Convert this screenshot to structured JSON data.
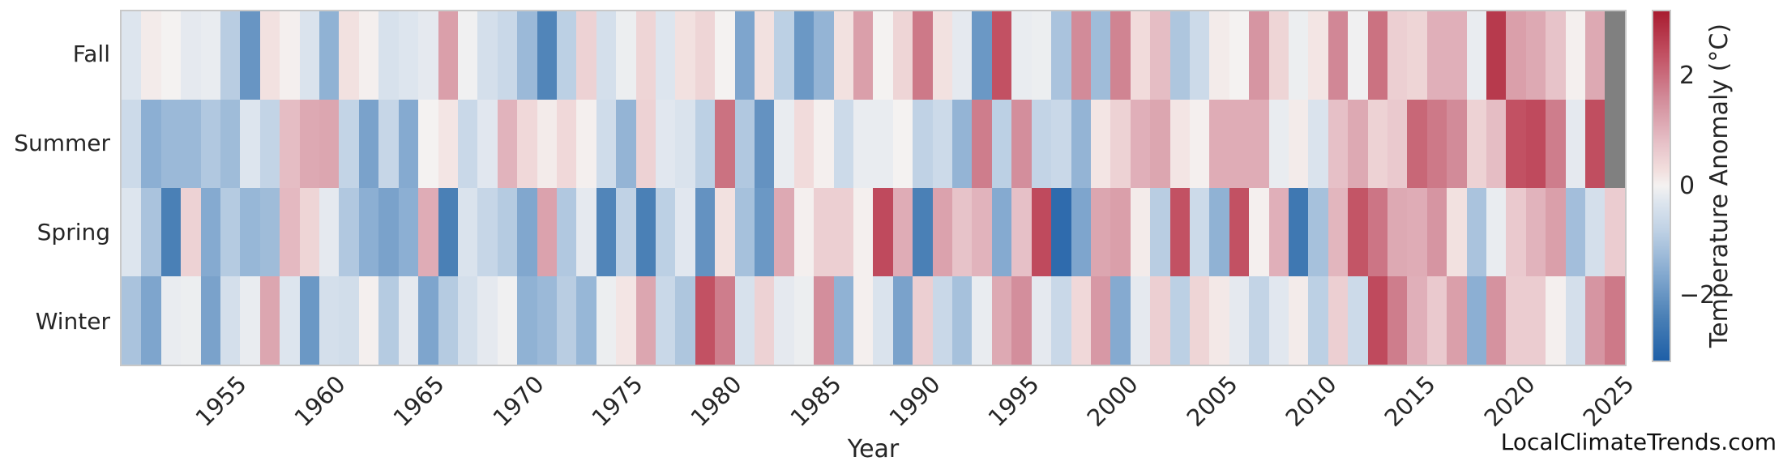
{
  "chart_data": {
    "type": "heatmap",
    "title": "",
    "xlabel": "Year",
    "ylabel": "",
    "rows": [
      "Fall",
      "Summer",
      "Spring",
      "Winter"
    ],
    "years": [
      1950,
      1951,
      1952,
      1953,
      1954,
      1955,
      1956,
      1957,
      1958,
      1959,
      1960,
      1961,
      1962,
      1963,
      1964,
      1965,
      1966,
      1967,
      1968,
      1969,
      1970,
      1971,
      1972,
      1973,
      1974,
      1975,
      1976,
      1977,
      1978,
      1979,
      1980,
      1981,
      1982,
      1983,
      1984,
      1985,
      1986,
      1987,
      1988,
      1989,
      1990,
      1991,
      1992,
      1993,
      1994,
      1995,
      1996,
      1997,
      1998,
      1999,
      2000,
      2001,
      2002,
      2003,
      2004,
      2005,
      2006,
      2007,
      2008,
      2009,
      2010,
      2011,
      2012,
      2013,
      2014,
      2015,
      2016,
      2017,
      2018,
      2019,
      2020,
      2021,
      2022,
      2023,
      2024,
      2025
    ],
    "x_tick_labels": [
      "1955",
      "1960",
      "1965",
      "1970",
      "1975",
      "1980",
      "1985",
      "1990",
      "1995",
      "2000",
      "2005",
      "2010",
      "2015",
      "2020",
      "2025"
    ],
    "series": [
      {
        "name": "Fall",
        "values": [
          -0.3,
          0.1,
          0.0,
          -0.2,
          -0.15,
          -0.9,
          -2.0,
          0.25,
          0.05,
          -0.35,
          -1.45,
          0.25,
          0.05,
          -0.4,
          -0.3,
          -0.2,
          1.3,
          -0.05,
          -0.45,
          -0.65,
          -1.3,
          -2.3,
          -0.85,
          0.5,
          -0.45,
          -0.1,
          0.45,
          -0.3,
          0.25,
          0.45,
          0.0,
          -1.7,
          0.25,
          -0.85,
          -1.95,
          -1.4,
          0.25,
          1.3,
          0.0,
          0.45,
          1.85,
          0.25,
          -0.2,
          -1.95,
          2.4,
          -0.15,
          -0.1,
          -1.1,
          1.6,
          -1.25,
          1.7,
          0.35,
          0.85,
          -1.05,
          -0.6,
          0.1,
          0.0,
          1.45,
          0.45,
          -0.1,
          0.2,
          1.65,
          -0.05,
          1.95,
          0.55,
          0.45,
          1.05,
          1.05,
          -0.15,
          2.75,
          1.3,
          1.15,
          0.75,
          0.05,
          1.15,
          null
        ]
      },
      {
        "name": "Summer",
        "values": [
          -0.6,
          -1.5,
          -1.3,
          -1.3,
          -1.0,
          -1.25,
          -0.3,
          -0.75,
          0.85,
          1.15,
          1.2,
          -0.75,
          -1.75,
          -0.7,
          -1.6,
          0.0,
          0.2,
          -0.65,
          -0.25,
          1.0,
          0.4,
          0.1,
          0.4,
          0.05,
          -0.55,
          -1.4,
          0.5,
          -0.25,
          -0.35,
          -0.85,
          1.95,
          -1.0,
          -2.05,
          -0.15,
          0.35,
          0.05,
          -0.6,
          -0.15,
          -0.15,
          0.0,
          -0.8,
          -0.6,
          -1.4,
          1.8,
          -0.85,
          1.55,
          -0.75,
          -0.65,
          -1.4,
          0.2,
          0.5,
          1.05,
          1.2,
          0.2,
          0.05,
          1.1,
          1.1,
          1.1,
          -0.15,
          0.1,
          -0.35,
          0.8,
          1.15,
          0.5,
          0.65,
          2.1,
          1.85,
          1.6,
          0.5,
          0.85,
          2.4,
          2.5,
          1.8,
          -0.2,
          2.45,
          null
        ]
      },
      {
        "name": "Spring",
        "values": [
          -0.3,
          -1.1,
          -2.4,
          0.5,
          -1.6,
          -0.95,
          -1.35,
          -1.25,
          0.9,
          0.45,
          -0.2,
          -1.0,
          -1.5,
          -1.75,
          -1.5,
          1.1,
          -2.4,
          -0.35,
          -0.7,
          -0.95,
          -1.65,
          1.25,
          -1.0,
          -0.2,
          -2.3,
          -0.8,
          -2.4,
          -0.85,
          -0.25,
          -2.05,
          0.25,
          -1.15,
          -1.95,
          1.15,
          0.05,
          0.55,
          0.55,
          0.05,
          2.5,
          1.1,
          -2.4,
          1.25,
          0.75,
          1.0,
          -1.6,
          0.8,
          2.5,
          -2.9,
          -1.7,
          1.2,
          1.3,
          0.1,
          -0.9,
          2.4,
          -0.6,
          -1.45,
          2.4,
          0.05,
          1.05,
          -2.6,
          -1.15,
          0.95,
          2.35,
          1.9,
          1.15,
          1.1,
          1.45,
          0.25,
          -1.1,
          -0.15,
          0.65,
          1.0,
          1.3,
          -1.2,
          -0.45,
          0.6
        ]
      },
      {
        "name": "Winter",
        "values": [
          -1.1,
          -1.7,
          -0.15,
          -0.1,
          -1.75,
          -0.45,
          -0.15,
          1.2,
          -0.3,
          -1.95,
          -0.45,
          -0.5,
          0.05,
          -0.95,
          -0.2,
          -1.7,
          -0.95,
          -0.45,
          -0.2,
          -0.05,
          -1.45,
          -1.3,
          -0.9,
          -1.35,
          -0.1,
          0.2,
          1.2,
          -0.65,
          -1.05,
          2.4,
          1.8,
          -0.4,
          0.5,
          -0.2,
          -0.1,
          1.55,
          -1.45,
          0.05,
          -0.35,
          -1.75,
          0.55,
          -0.65,
          -1.15,
          -0.15,
          1.15,
          1.55,
          -0.2,
          -0.65,
          0.4,
          1.4,
          -1.6,
          -0.2,
          0.55,
          -0.85,
          0.45,
          0.15,
          -0.2,
          -0.75,
          -0.25,
          0.1,
          -0.85,
          0.55,
          -0.6,
          2.5,
          1.8,
          1.05,
          0.65,
          1.3,
          -1.5,
          1.5,
          0.6,
          0.6,
          0.05,
          -0.45,
          1.45,
          1.85
        ]
      }
    ],
    "colorbar": {
      "label": "Temperature Anomaly (°C)",
      "tick_labels": [
        "2",
        "0",
        "−2"
      ],
      "tick_values": [
        2,
        0,
        -2
      ],
      "vmin": -3.2,
      "vmax": 3.2
    },
    "colormap": {
      "name": "RdBu_r",
      "nan_color": "#808080",
      "anchors": [
        [
          -3.2,
          "#1e5fa7"
        ],
        [
          -2.4,
          "#4a80b6"
        ],
        [
          -1.6,
          "#85aad0"
        ],
        [
          -0.8,
          "#c0d2e5"
        ],
        [
          -0.3,
          "#dde5ee"
        ],
        [
          0.0,
          "#f4f2f1"
        ],
        [
          0.3,
          "#f2dedd"
        ],
        [
          0.8,
          "#e6c0c7"
        ],
        [
          1.6,
          "#d28b99"
        ],
        [
          2.4,
          "#c25163"
        ],
        [
          3.2,
          "#a81c30"
        ]
      ]
    },
    "frame_color": "#c8c8c8",
    "watermark": "LocalClimateTrends.com"
  }
}
